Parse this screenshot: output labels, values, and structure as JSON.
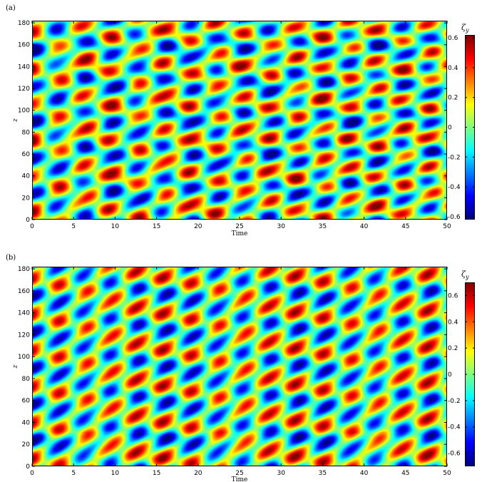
{
  "chart_data": [
    {
      "type": "heatmap",
      "panel_label": "(a)",
      "xlabel": "Time",
      "ylabel": "z",
      "x_ticks": [
        0,
        5,
        10,
        15,
        20,
        25,
        30,
        35,
        40,
        45,
        50
      ],
      "y_ticks": [
        0,
        20,
        40,
        60,
        80,
        100,
        120,
        140,
        160,
        180
      ],
      "xlim": [
        0,
        50
      ],
      "ylim": [
        0,
        182
      ],
      "colorbar_label": "ζ_y",
      "colorbar_ticks": [
        -0.6,
        -0.4,
        -0.2,
        0,
        0.2,
        0.4,
        0.6
      ],
      "clim": [
        -0.62,
        0.62
      ],
      "colormap": "jet",
      "field": {
        "amplitude": 0.55,
        "period_z": 33,
        "period_t": 6.4,
        "tilt_per_time": 2.2,
        "description": "alternating positive/negative blobs forming a checkerboard that drifts upward in z over time"
      }
    },
    {
      "type": "heatmap",
      "panel_label": "(b)",
      "xlabel": "Time",
      "ylabel": "z",
      "x_ticks": [
        0,
        5,
        10,
        15,
        20,
        25,
        30,
        35,
        40,
        45,
        50
      ],
      "y_ticks": [
        0,
        20,
        40,
        60,
        80,
        100,
        120,
        140,
        160,
        180
      ],
      "xlim": [
        0,
        50
      ],
      "ylim": [
        0,
        182
      ],
      "colorbar_label": "ζ_y",
      "colorbar_ticks": [
        -0.6,
        -0.4,
        -0.2,
        0,
        0.2,
        0.4,
        0.6
      ],
      "clim": [
        -0.7,
        0.7
      ],
      "colormap": "jet",
      "field": {
        "amplitude": 0.62,
        "period_z": 33,
        "period_t": 6.4,
        "tilt_per_time": 3.2,
        "description": "regular diagonal bands of alternating positive/negative vorticity tilted upward in time"
      }
    }
  ]
}
